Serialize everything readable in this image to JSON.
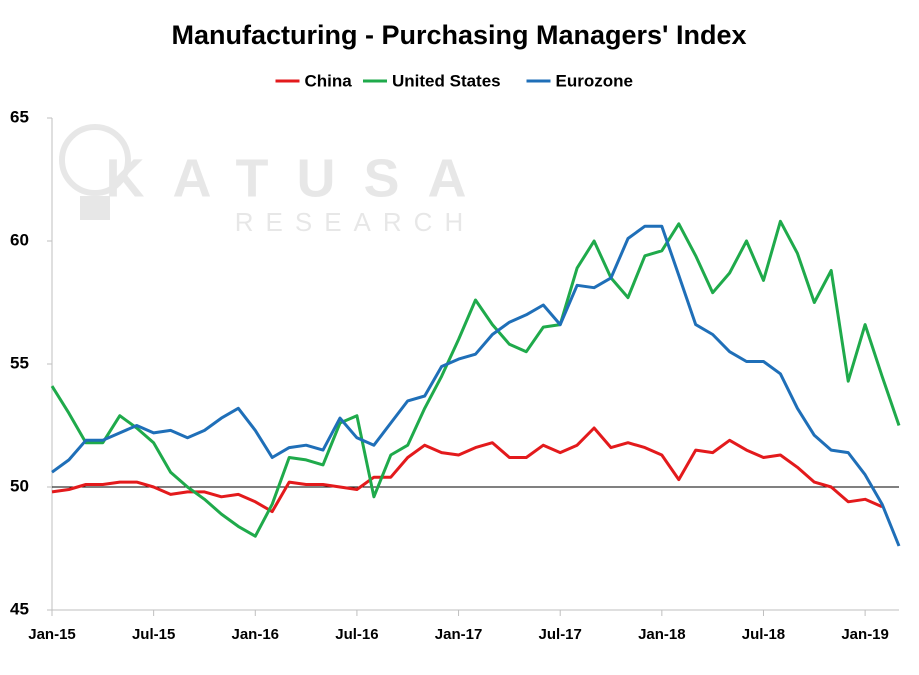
{
  "chart_data": {
    "type": "line",
    "title": "Manufacturing - Purchasing Managers' Index",
    "watermark": [
      "KATUSA",
      "RESEARCH"
    ],
    "categories": [
      "Jan-15",
      null,
      null,
      null,
      null,
      null,
      "Jul-15",
      null,
      null,
      null,
      null,
      null,
      "Jan-16",
      null,
      null,
      null,
      null,
      null,
      "Jul-16",
      null,
      null,
      null,
      null,
      null,
      "Jan-17",
      null,
      null,
      null,
      null,
      null,
      "Jul-17",
      null,
      null,
      null,
      null,
      null,
      "Jan-18",
      null,
      null,
      null,
      null,
      null,
      "Jul-18",
      null,
      null,
      null,
      null,
      null,
      "Jan-19",
      null,
      null
    ],
    "series": [
      {
        "name": "China",
        "color": "#e31a1c",
        "values": [
          49.8,
          49.9,
          50.1,
          50.1,
          50.2,
          50.2,
          50.0,
          49.7,
          49.8,
          49.8,
          49.6,
          49.7,
          49.4,
          49.0,
          50.2,
          50.1,
          50.1,
          50.0,
          49.9,
          50.4,
          50.4,
          51.2,
          51.7,
          51.4,
          51.3,
          51.6,
          51.8,
          51.2,
          51.2,
          51.7,
          51.4,
          51.7,
          52.4,
          51.6,
          51.8,
          51.6,
          51.3,
          50.3,
          51.5,
          51.4,
          51.9,
          51.5,
          51.2,
          51.3,
          50.8,
          50.2,
          50.0,
          49.4,
          49.5,
          49.2,
          null
        ]
      },
      {
        "name": "United States",
        "color": "#1faa4b",
        "values": [
          54.1,
          53.0,
          51.8,
          51.8,
          52.9,
          52.4,
          51.8,
          50.6,
          50.0,
          49.5,
          48.9,
          48.4,
          48.0,
          49.3,
          51.2,
          51.1,
          50.9,
          52.6,
          52.9,
          49.6,
          51.3,
          51.7,
          53.2,
          54.5,
          56.0,
          57.6,
          56.6,
          55.8,
          55.5,
          56.5,
          56.6,
          58.9,
          60.0,
          58.5,
          57.7,
          59.4,
          59.6,
          60.7,
          59.4,
          57.9,
          58.7,
          60.0,
          58.4,
          60.8,
          59.5,
          57.5,
          58.8,
          54.3,
          56.6,
          54.5,
          52.5
        ]
      },
      {
        "name": "Eurozone",
        "color": "#1f6fb8",
        "values": [
          50.6,
          51.1,
          51.9,
          51.9,
          52.2,
          52.5,
          52.2,
          52.3,
          52.0,
          52.3,
          52.8,
          53.2,
          52.3,
          51.2,
          51.6,
          51.7,
          51.5,
          52.8,
          52.0,
          51.7,
          52.6,
          53.5,
          53.7,
          54.9,
          55.2,
          55.4,
          56.2,
          56.7,
          57.0,
          57.4,
          56.6,
          58.2,
          58.1,
          58.5,
          60.1,
          60.6,
          60.6,
          58.6,
          56.6,
          56.2,
          55.5,
          55.1,
          55.1,
          54.6,
          53.2,
          52.1,
          51.5,
          51.4,
          50.5,
          49.3,
          47.6
        ]
      }
    ],
    "ylim": [
      45,
      65
    ],
    "yticks": [
      45,
      50,
      55,
      60,
      65
    ],
    "reference_line": 50,
    "reference_color": "#000000",
    "legend": "top"
  }
}
